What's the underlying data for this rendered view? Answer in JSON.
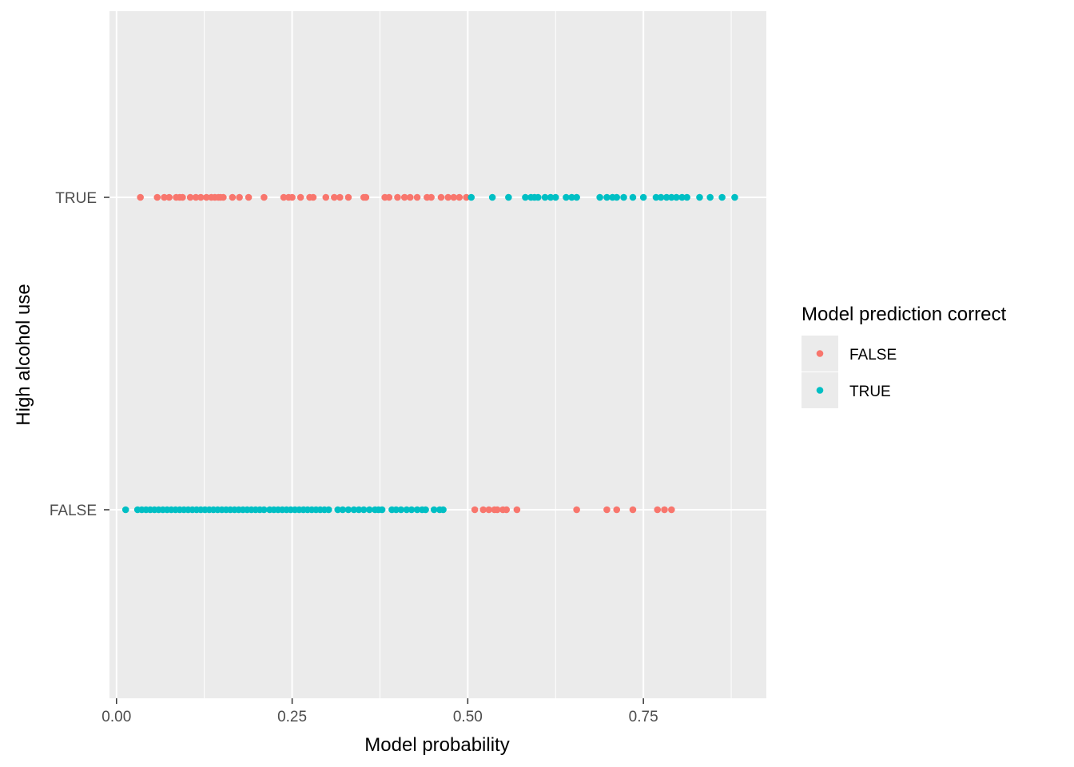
{
  "chart_data": {
    "type": "scatter",
    "xlabel": "Model probability",
    "ylabel": "High alcohol use",
    "xlim": [
      -0.01,
      0.925
    ],
    "x_ticks": [
      0.0,
      0.25,
      0.5,
      0.75
    ],
    "x_tick_labels": [
      "0.00",
      "0.25",
      "0.50",
      "0.75"
    ],
    "y_categories": [
      "FALSE",
      "TRUE"
    ],
    "grid": true,
    "legend": {
      "title": "Model prediction correct",
      "placement": "right",
      "entries": [
        {
          "label": "FALSE",
          "color": "#F8766D"
        },
        {
          "label": "TRUE",
          "color": "#00BFC4"
        }
      ]
    },
    "series": [
      {
        "y": "TRUE",
        "correct": "FALSE",
        "x": [
          0.034,
          0.058,
          0.068,
          0.075,
          0.085,
          0.09,
          0.094,
          0.105,
          0.113,
          0.12,
          0.128,
          0.135,
          0.14,
          0.145,
          0.148,
          0.152,
          0.165,
          0.175,
          0.188,
          0.21,
          0.238,
          0.245,
          0.25,
          0.262,
          0.275,
          0.28,
          0.298,
          0.31,
          0.318,
          0.33,
          0.352,
          0.355,
          0.382,
          0.388,
          0.4,
          0.41,
          0.418,
          0.428,
          0.442,
          0.448,
          0.462,
          0.472,
          0.48,
          0.488,
          0.498
        ]
      },
      {
        "y": "TRUE",
        "correct": "TRUE",
        "x": [
          0.505,
          0.535,
          0.558,
          0.582,
          0.59,
          0.595,
          0.6,
          0.61,
          0.618,
          0.625,
          0.64,
          0.648,
          0.655,
          0.688,
          0.698,
          0.706,
          0.712,
          0.722,
          0.735,
          0.75,
          0.768,
          0.775,
          0.783,
          0.79,
          0.797,
          0.805,
          0.812,
          0.83,
          0.845,
          0.862,
          0.88
        ]
      },
      {
        "y": "FALSE",
        "correct": "TRUE",
        "x": [
          0.013,
          0.03,
          0.036,
          0.042,
          0.048,
          0.054,
          0.06,
          0.066,
          0.072,
          0.078,
          0.084,
          0.09,
          0.096,
          0.102,
          0.108,
          0.114,
          0.12,
          0.126,
          0.132,
          0.138,
          0.144,
          0.15,
          0.156,
          0.162,
          0.168,
          0.174,
          0.18,
          0.186,
          0.192,
          0.198,
          0.204,
          0.21,
          0.218,
          0.224,
          0.23,
          0.236,
          0.242,
          0.248,
          0.254,
          0.26,
          0.266,
          0.272,
          0.278,
          0.284,
          0.29,
          0.296,
          0.302,
          0.315,
          0.322,
          0.33,
          0.338,
          0.345,
          0.352,
          0.36,
          0.368,
          0.373,
          0.378,
          0.392,
          0.398,
          0.405,
          0.413,
          0.42,
          0.428,
          0.435,
          0.44,
          0.452,
          0.46,
          0.465
        ]
      },
      {
        "y": "FALSE",
        "correct": "FALSE",
        "x": [
          0.51,
          0.522,
          0.53,
          0.538,
          0.542,
          0.55,
          0.555,
          0.57,
          0.655,
          0.698,
          0.712,
          0.735,
          0.77,
          0.78,
          0.79
        ]
      }
    ]
  }
}
